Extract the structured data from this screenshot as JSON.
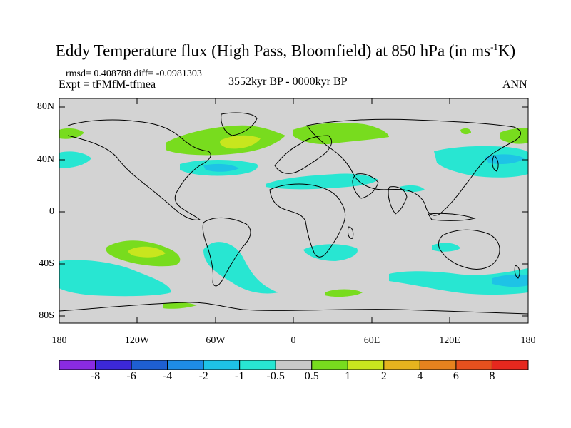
{
  "title": {
    "main": "Eddy Temperature flux (High Pass, Bloomfield) at 850 hPa (in ms",
    "sup": "-1",
    "tail": "K)"
  },
  "stats": "rmsd= 0.408788 diff= -0.0981303",
  "experiment": "Expt = tFMfM-tfmea",
  "period": "3552kyr BP - 0000kyr BP",
  "season": "ANN",
  "lat_labels": [
    "80N",
    "40N",
    "0",
    "40S",
    "80S"
  ],
  "lon_labels": [
    "180",
    "120W",
    "60W",
    "0",
    "60E",
    "120E",
    "180"
  ],
  "colorbar": {
    "labels": [
      "-8",
      "-6",
      "-4",
      "-2",
      "-1",
      "-0.5",
      "0.5",
      "1",
      "2",
      "4",
      "6",
      "8"
    ],
    "colors": [
      "#8a2be2",
      "#3c28d8",
      "#1e5fd2",
      "#1e8ce6",
      "#1ec3e6",
      "#28e6d2",
      "#c8c8c8",
      "#78dc1e",
      "#c8e61e",
      "#e6b41e",
      "#e6821e",
      "#e6501e",
      "#e6281e"
    ]
  },
  "palette": {
    "land_neutral": "#d3d3d3",
    "light_pos": "#78dc1e",
    "mid_pos": "#c8e61e",
    "light_neg": "#28e6d2",
    "mid_neg": "#1ec3e6",
    "deep_neg": "#1e8ce6"
  }
}
